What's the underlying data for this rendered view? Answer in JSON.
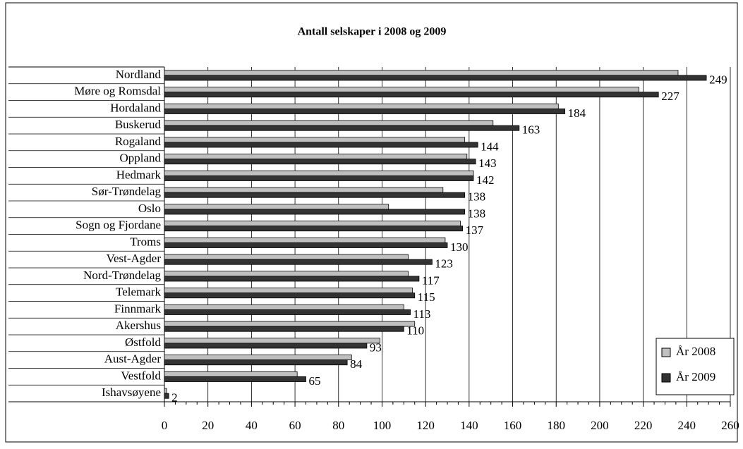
{
  "chart_data": {
    "type": "barh",
    "title": "Antall selskaper i 2008 og 2009",
    "categories": [
      "Nordland",
      "Møre og Romsdal",
      "Hordaland",
      "Buskerud",
      "Rogaland",
      "Oppland",
      "Hedmark",
      "Sør-Trøndelag",
      "Oslo",
      "Sogn og Fjordane",
      "Troms",
      "Vest-Agder",
      "Nord-Trøndelag",
      "Telemark",
      "Finnmark",
      "Akershus",
      "Østfold",
      "Aust-Agder",
      "Vestfold",
      "Ishavsøyene"
    ],
    "series": [
      {
        "name": "År 2008",
        "color": "#c0c0c0",
        "values": [
          236,
          218,
          181,
          151,
          138,
          139,
          142,
          128,
          103,
          136,
          129,
          112,
          112,
          114,
          110,
          115,
          99,
          86,
          61,
          1
        ]
      },
      {
        "name": "År 2009",
        "color": "#333333",
        "values": [
          249,
          227,
          184,
          163,
          144,
          143,
          142,
          138,
          138,
          137,
          130,
          123,
          117,
          115,
          113,
          110,
          93,
          84,
          65,
          2
        ],
        "data_labels": true
      }
    ],
    "xlim": [
      0,
      260
    ],
    "xticks": [
      0,
      20,
      40,
      60,
      80,
      100,
      120,
      140,
      160,
      180,
      200,
      220,
      240,
      260
    ],
    "grid": true,
    "legend": "lower right"
  }
}
